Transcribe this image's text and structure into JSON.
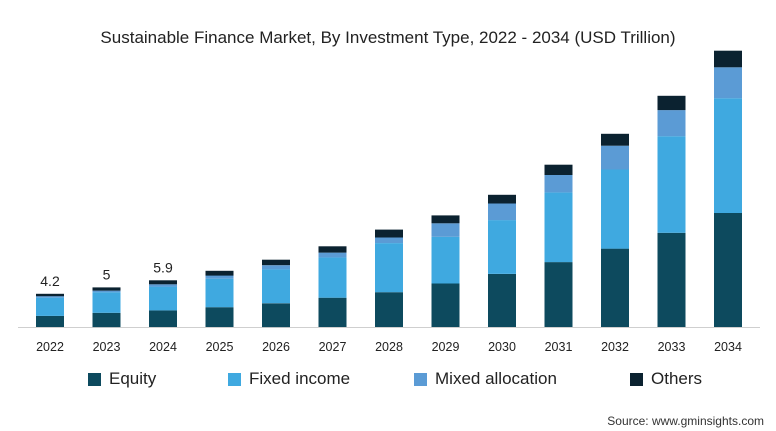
{
  "chart_data": {
    "type": "bar",
    "stacked": true,
    "title": "Sustainable Finance Market, By Investment Type, 2022 - 2034 (USD Trillion)",
    "xlabel": "",
    "ylabel": "",
    "categories": [
      "2022",
      "2023",
      "2024",
      "2025",
      "2026",
      "2027",
      "2028",
      "2029",
      "2030",
      "2031",
      "2032",
      "2033",
      "2034"
    ],
    "series": [
      {
        "name": "Equity",
        "color": "#0d4a5e",
        "values": [
          1.4,
          1.8,
          2.1,
          2.5,
          3.0,
          3.7,
          4.4,
          5.5,
          6.7,
          8.2,
          9.9,
          11.9,
          14.4
        ]
      },
      {
        "name": "Fixed income",
        "color": "#3fa9e0",
        "values": [
          2.3,
          2.6,
          3.0,
          3.6,
          4.3,
          5.1,
          6.2,
          5.9,
          6.8,
          8.8,
          10.0,
          12.2,
          14.5
        ]
      },
      {
        "name": "Mixed allocation",
        "color": "#5b9bd5",
        "values": [
          0.2,
          0.2,
          0.3,
          0.4,
          0.5,
          0.6,
          0.7,
          1.7,
          2.1,
          2.2,
          3.0,
          3.3,
          3.9
        ]
      },
      {
        "name": "Others",
        "color": "#0b2230",
        "values": [
          0.3,
          0.4,
          0.5,
          0.6,
          0.7,
          0.8,
          1.0,
          1.0,
          1.1,
          1.3,
          1.5,
          1.8,
          2.1
        ]
      }
    ],
    "data_labels": [
      {
        "category": "2022",
        "text": "4.2"
      },
      {
        "category": "2023",
        "text": "5"
      },
      {
        "category": "2024",
        "text": "5.9"
      }
    ],
    "ylim": [
      0,
      36
    ],
    "grid": false,
    "legend_position": "bottom"
  },
  "source": "Source: www.gminsights.com"
}
